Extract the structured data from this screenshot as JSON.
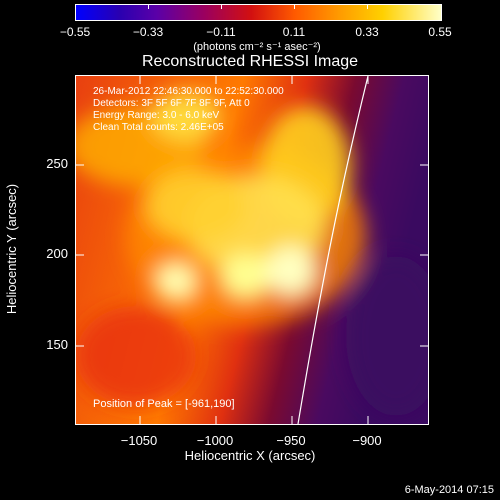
{
  "colorbar": {
    "tick_labels": [
      "−0.55",
      "−0.33",
      "−0.11",
      "0.11",
      "0.33",
      "0.55"
    ],
    "units": "(photons cm⁻² s⁻¹ asec⁻²)"
  },
  "title": "Reconstructed RHESSI Image",
  "info_lines": [
    "26-Mar-2012 22:46:30.000 to 22:52:30.000",
    "Detectors: 3F 5F 6F 7F 8F 9F, Att 0",
    "Energy Range: 3.0 - 6.0 keV",
    "Clean     Total counts: 2.46E+05"
  ],
  "peak_text": "Position of Peak = [-961,190]",
  "axes": {
    "xlabel": "Heliocentric X (arcsec)",
    "ylabel": "Heliocentric Y (arcsec)",
    "x_ticks": [
      "−1050",
      "−1000",
      "−950",
      "−900"
    ],
    "y_ticks": [
      "250",
      "200",
      "150"
    ]
  },
  "footer": "6-May-2014 07:15",
  "colors": {
    "background": "#000000",
    "limb_line": "#ffffff"
  }
}
